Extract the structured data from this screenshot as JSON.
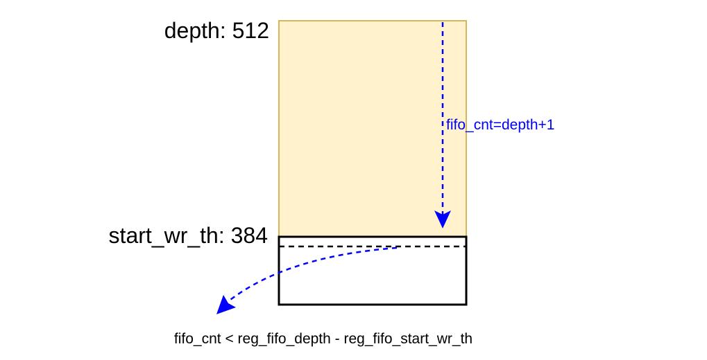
{
  "labels": {
    "depth": "depth: 512",
    "start_wr_th": "start_wr_th: 384",
    "fifo_cnt_top": "fifo_cnt=depth+1",
    "condition": "fifo_cnt < reg_fifo_depth - reg_fifo_start_wr_th"
  },
  "colors": {
    "upper_fill": "#fff2cc",
    "upper_stroke": "#d6b656",
    "arrow": "#0000ff",
    "outline": "#000000",
    "text": "#000000"
  }
}
